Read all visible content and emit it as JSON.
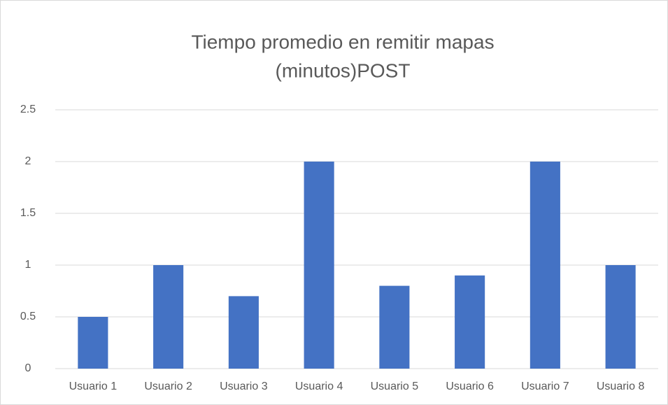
{
  "chart_data": {
    "type": "bar",
    "title": [
      "Tiempo promedio en remitir mapas",
      "(minutos)POST"
    ],
    "categories": [
      "Usuario 1",
      "Usuario 2",
      "Usuario 3",
      "Usuario 4",
      "Usuario 5",
      "Usuario 6",
      "Usuario 7",
      "Usuario 8"
    ],
    "values": [
      0.5,
      1,
      0.7,
      2,
      0.8,
      0.9,
      2,
      1
    ],
    "color": "#4472c4",
    "ylim": [
      0,
      2.5
    ],
    "yticks": [
      0,
      0.5,
      1,
      1.5,
      2,
      2.5
    ],
    "grid": true
  }
}
